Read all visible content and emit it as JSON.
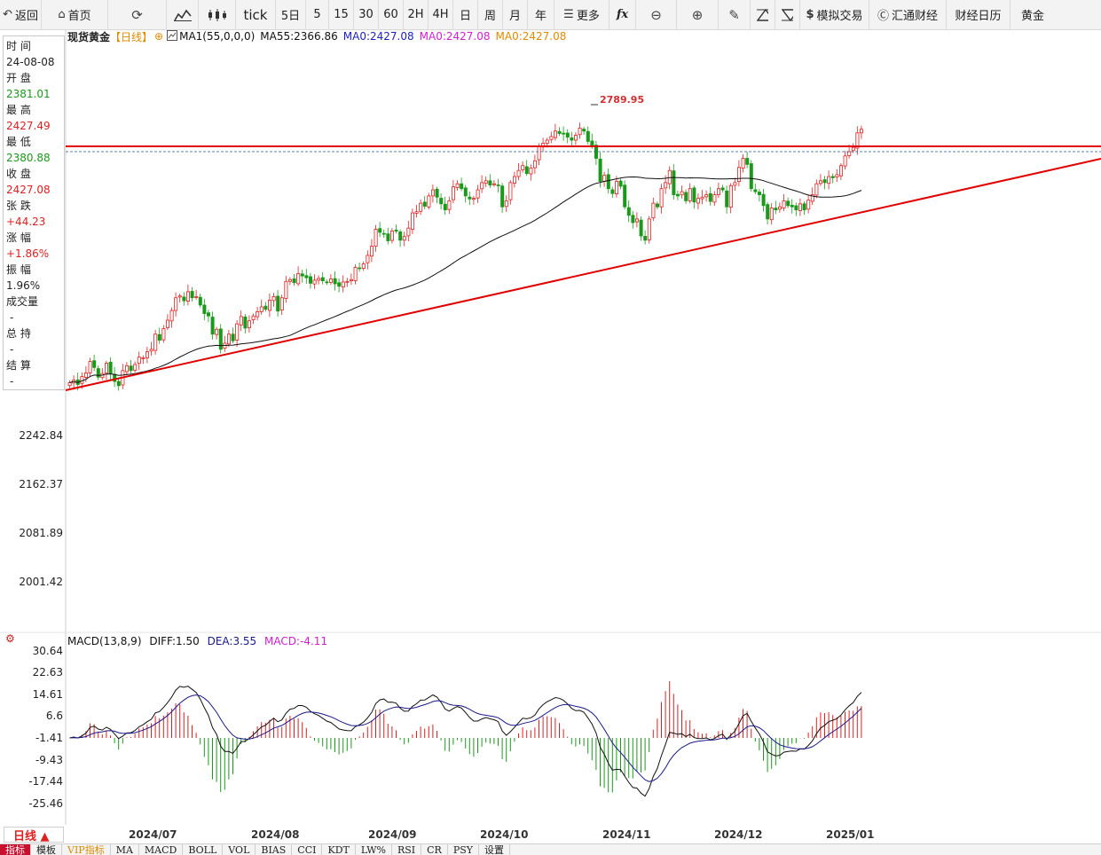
{
  "toolbar": {
    "back": "返回",
    "home": "首页",
    "tick": "tick",
    "p5d": "5日",
    "m5": "5",
    "m15": "15",
    "m30": "30",
    "m60": "60",
    "h2": "2H",
    "h4": "4H",
    "day": "日",
    "week": "周",
    "month": "月",
    "year": "年",
    "more": "更多",
    "fx": "fx",
    "sim_trade": "模拟交易",
    "huitong": "汇通财经",
    "calendar": "财经日历",
    "gold": "黄金"
  },
  "info": {
    "time_label": "时 间",
    "time_value": "24-08-08",
    "open_label": "开 盘",
    "open_value": "2381.01",
    "high_label": "最 高",
    "high_value": "2427.49",
    "low_label": "最 低",
    "low_value": "2380.88",
    "close_label": "收 盘",
    "close_value": "2427.08",
    "change_label": "张 跌",
    "change_value": "+44.23",
    "pct_label": "涨 幅",
    "pct_value": "+1.86%",
    "amp_label": "振 幅",
    "amp_value": "1.96%",
    "vol_label": "成交量",
    "vol_value": "-",
    "oi_label": "总 持",
    "oi_value": "-",
    "settle_label": "结 算",
    "settle_value": "-"
  },
  "chart_header": {
    "symbol": "现货黄金",
    "period": "【日线】",
    "ma1": "MA1(55,0,0,0)",
    "ma55": "MA55:2366.86",
    "ma0a": "MA0:2427.08",
    "ma0b": "MA0:2427.08",
    "ma0c": "MA0:2427.08"
  },
  "peak_label": "2789.95",
  "macd_header": {
    "name": "MACD(13,8,9)",
    "diff": "DIFF:1.50",
    "dea": "DEA:3.55",
    "macd": "MACD:-4.11"
  },
  "bottom": {
    "period_button": "日线 ▲"
  },
  "indicator_tabs": [
    "指标",
    "模板",
    "VIP指标",
    "MA",
    "MACD",
    "BOLL",
    "VOL",
    "BIAS",
    "CCI",
    "KDT",
    "LW%",
    "RSI",
    "CR",
    "PSY",
    "设置"
  ],
  "colors": {
    "up": "#e02020",
    "down": "#1a9a1a",
    "trendline": "#e00000",
    "ma55": "#111111",
    "dea": "#1a1a8c"
  },
  "chart_data": [
    {
      "type": "candlestick",
      "title": "现货黄金",
      "x_ticks": [
        "2024/07",
        "2024/08",
        "2024/09",
        "2024/10",
        "2024/11",
        "2024/12",
        "2025/01"
      ],
      "y_ticks": [
        2242.84,
        2162.37,
        2081.89,
        2001.42
      ],
      "ylim": [
        1900,
        2850
      ],
      "closes": [
        2330,
        2334,
        2327,
        2340,
        2346,
        2365,
        2355,
        2339,
        2345,
        2362,
        2345,
        2332,
        2325,
        2350,
        2358,
        2350,
        2360,
        2372,
        2371,
        2381,
        2385,
        2410,
        2400,
        2419,
        2433,
        2449,
        2470,
        2473,
        2465,
        2480,
        2470,
        2472,
        2458,
        2444,
        2440,
        2410,
        2418,
        2385,
        2395,
        2410,
        2399,
        2427,
        2439,
        2420,
        2432,
        2440,
        2447,
        2455,
        2451,
        2466,
        2472,
        2448,
        2470,
        2497,
        2500,
        2495,
        2510,
        2506,
        2503,
        2494,
        2499,
        2502,
        2498,
        2496,
        2501,
        2493,
        2489,
        2496,
        2497,
        2500,
        2520,
        2518,
        2526,
        2540,
        2555,
        2583,
        2578,
        2576,
        2564,
        2580,
        2580,
        2565,
        2571,
        2585,
        2610,
        2612,
        2626,
        2621,
        2638,
        2648,
        2636,
        2625,
        2615,
        2630,
        2653,
        2658,
        2650,
        2638,
        2633,
        2634,
        2648,
        2660,
        2663,
        2656,
        2658,
        2655,
        2620,
        2630,
        2660,
        2670,
        2680,
        2688,
        2675,
        2684,
        2696,
        2720,
        2725,
        2730,
        2736,
        2745,
        2741,
        2740,
        2735,
        2730,
        2738,
        2750,
        2745,
        2728,
        2720,
        2700,
        2662,
        2672,
        2650,
        2642,
        2662,
        2654,
        2620,
        2606,
        2594,
        2600,
        2572,
        2565,
        2600,
        2626,
        2620,
        2650,
        2660,
        2680,
        2640,
        2638,
        2645,
        2630,
        2650,
        2628,
        2634,
        2636,
        2640,
        2629,
        2640,
        2650,
        2648,
        2620,
        2655,
        2660,
        2685,
        2700,
        2690,
        2650,
        2645,
        2640,
        2622,
        2600,
        2618,
        2615,
        2620,
        2630,
        2622,
        2620,
        2615,
        2625,
        2615,
        2631,
        2640,
        2658,
        2663,
        2660,
        2670,
        2668,
        2673,
        2688,
        2704,
        2711,
        2718,
        2742,
        2748
      ],
      "ma55_style": "smoothed series, 55-day moving average",
      "resistance_level": 2730,
      "support_trendline": "rising line from 2024/06 to 2025/01"
    },
    {
      "type": "macd",
      "title": "MACD(13,8,9)",
      "y_ticks": [
        30.64,
        22.63,
        14.61,
        6.6,
        -1.41,
        -9.43,
        -17.44,
        -25.46
      ],
      "ylim": [
        -33,
        34
      ]
    }
  ]
}
